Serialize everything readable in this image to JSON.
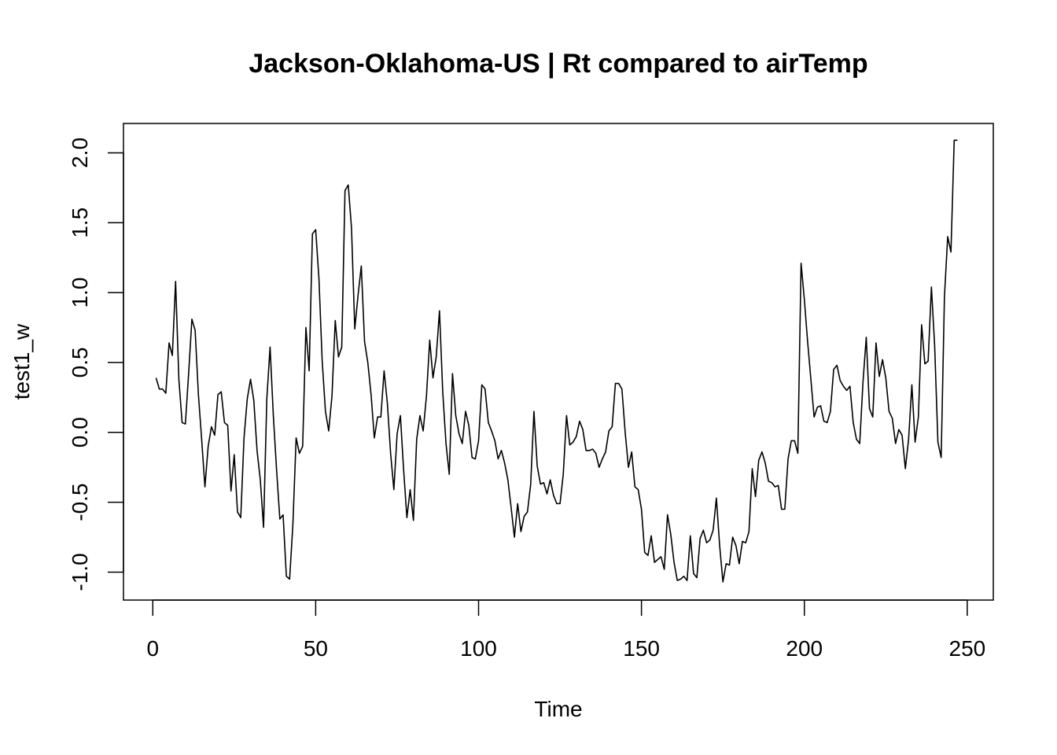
{
  "chart_data": {
    "type": "line",
    "title": "Jackson-Oklahoma-US | Rt compared to airTemp",
    "xlabel": "Time",
    "ylabel": "test1_w",
    "xlim": [
      -9,
      258
    ],
    "ylim": [
      -1.2,
      2.21
    ],
    "xticks": [
      0,
      50,
      100,
      150,
      200,
      250
    ],
    "xtick_labels": [
      "0",
      "50",
      "100",
      "150",
      "200",
      "250"
    ],
    "yticks": [
      -1.0,
      -0.5,
      0.0,
      0.5,
      1.0,
      1.5,
      2.0
    ],
    "ytick_labels": [
      "-1.0",
      "-0.5",
      "0.0",
      "0.5",
      "1.0",
      "1.5",
      "2.0"
    ],
    "grid": false,
    "series": [
      {
        "color": "#000000",
        "x_start": 1,
        "values": [
          0.39,
          0.31,
          0.31,
          0.28,
          0.64,
          0.55,
          1.08,
          0.38,
          0.07,
          0.06,
          0.42,
          0.81,
          0.73,
          0.27,
          -0.05,
          -0.39,
          -0.1,
          0.04,
          -0.02,
          0.27,
          0.29,
          0.07,
          0.05,
          -0.42,
          -0.16,
          -0.57,
          -0.61,
          -0.04,
          0.24,
          0.38,
          0.23,
          -0.13,
          -0.34,
          -0.68,
          0.24,
          0.61,
          0.12,
          -0.27,
          -0.62,
          -0.59,
          -1.03,
          -1.05,
          -0.66,
          -0.04,
          -0.15,
          -0.1,
          0.75,
          0.44,
          1.42,
          1.45,
          1.1,
          0.51,
          0.15,
          0.01,
          0.26,
          0.8,
          0.54,
          0.61,
          1.73,
          1.77,
          1.46,
          0.74,
          0.98,
          1.19,
          0.65,
          0.5,
          0.27,
          -0.04,
          0.11,
          0.11,
          0.44,
          0.21,
          -0.15,
          -0.41,
          -0.01,
          0.12,
          -0.27,
          -0.61,
          -0.41,
          -0.63,
          -0.05,
          0.12,
          0.01,
          0.26,
          0.66,
          0.39,
          0.54,
          0.87,
          0.29,
          -0.08,
          -0.3,
          0.42,
          0.12,
          -0.01,
          -0.08,
          0.15,
          0.05,
          -0.18,
          -0.19,
          -0.06,
          0.34,
          0.31,
          0.07,
          0.01,
          -0.06,
          -0.19,
          -0.13,
          -0.22,
          -0.34,
          -0.54,
          -0.75,
          -0.51,
          -0.71,
          -0.6,
          -0.57,
          -0.37,
          0.15,
          -0.24,
          -0.37,
          -0.36,
          -0.44,
          -0.34,
          -0.45,
          -0.51,
          -0.51,
          -0.3,
          0.12,
          -0.09,
          -0.07,
          -0.03,
          0.08,
          0.02,
          -0.13,
          -0.13,
          -0.12,
          -0.15,
          -0.25,
          -0.19,
          -0.14,
          0.01,
          0.04,
          0.35,
          0.35,
          0.31,
          0.0,
          -0.25,
          -0.14,
          -0.39,
          -0.41,
          -0.55,
          -0.86,
          -0.88,
          -0.74,
          -0.93,
          -0.91,
          -0.89,
          -0.98,
          -0.59,
          -0.73,
          -0.93,
          -1.06,
          -1.05,
          -1.03,
          -1.06,
          -0.74,
          -1.01,
          -1.04,
          -0.76,
          -0.7,
          -0.79,
          -0.77,
          -0.7,
          -0.47,
          -0.81,
          -1.07,
          -0.94,
          -0.95,
          -0.75,
          -0.81,
          -0.94,
          -0.78,
          -0.79,
          -0.71,
          -0.26,
          -0.46,
          -0.2,
          -0.14,
          -0.22,
          -0.35,
          -0.36,
          -0.39,
          -0.38,
          -0.55,
          -0.55,
          -0.19,
          -0.06,
          -0.06,
          -0.15,
          1.21,
          0.95,
          0.65,
          0.38,
          0.11,
          0.18,
          0.19,
          0.08,
          0.07,
          0.15,
          0.45,
          0.48,
          0.37,
          0.33,
          0.3,
          0.33,
          0.07,
          -0.05,
          -0.08,
          0.36,
          0.68,
          0.17,
          0.11,
          0.64,
          0.4,
          0.52,
          0.39,
          0.15,
          0.1,
          -0.08,
          0.02,
          -0.02,
          -0.26,
          -0.05,
          0.34,
          -0.07,
          0.11,
          0.77,
          0.49,
          0.51,
          1.04,
          0.62,
          -0.07,
          -0.18,
          0.97,
          1.4,
          1.29,
          2.09,
          2.09
        ]
      }
    ]
  }
}
